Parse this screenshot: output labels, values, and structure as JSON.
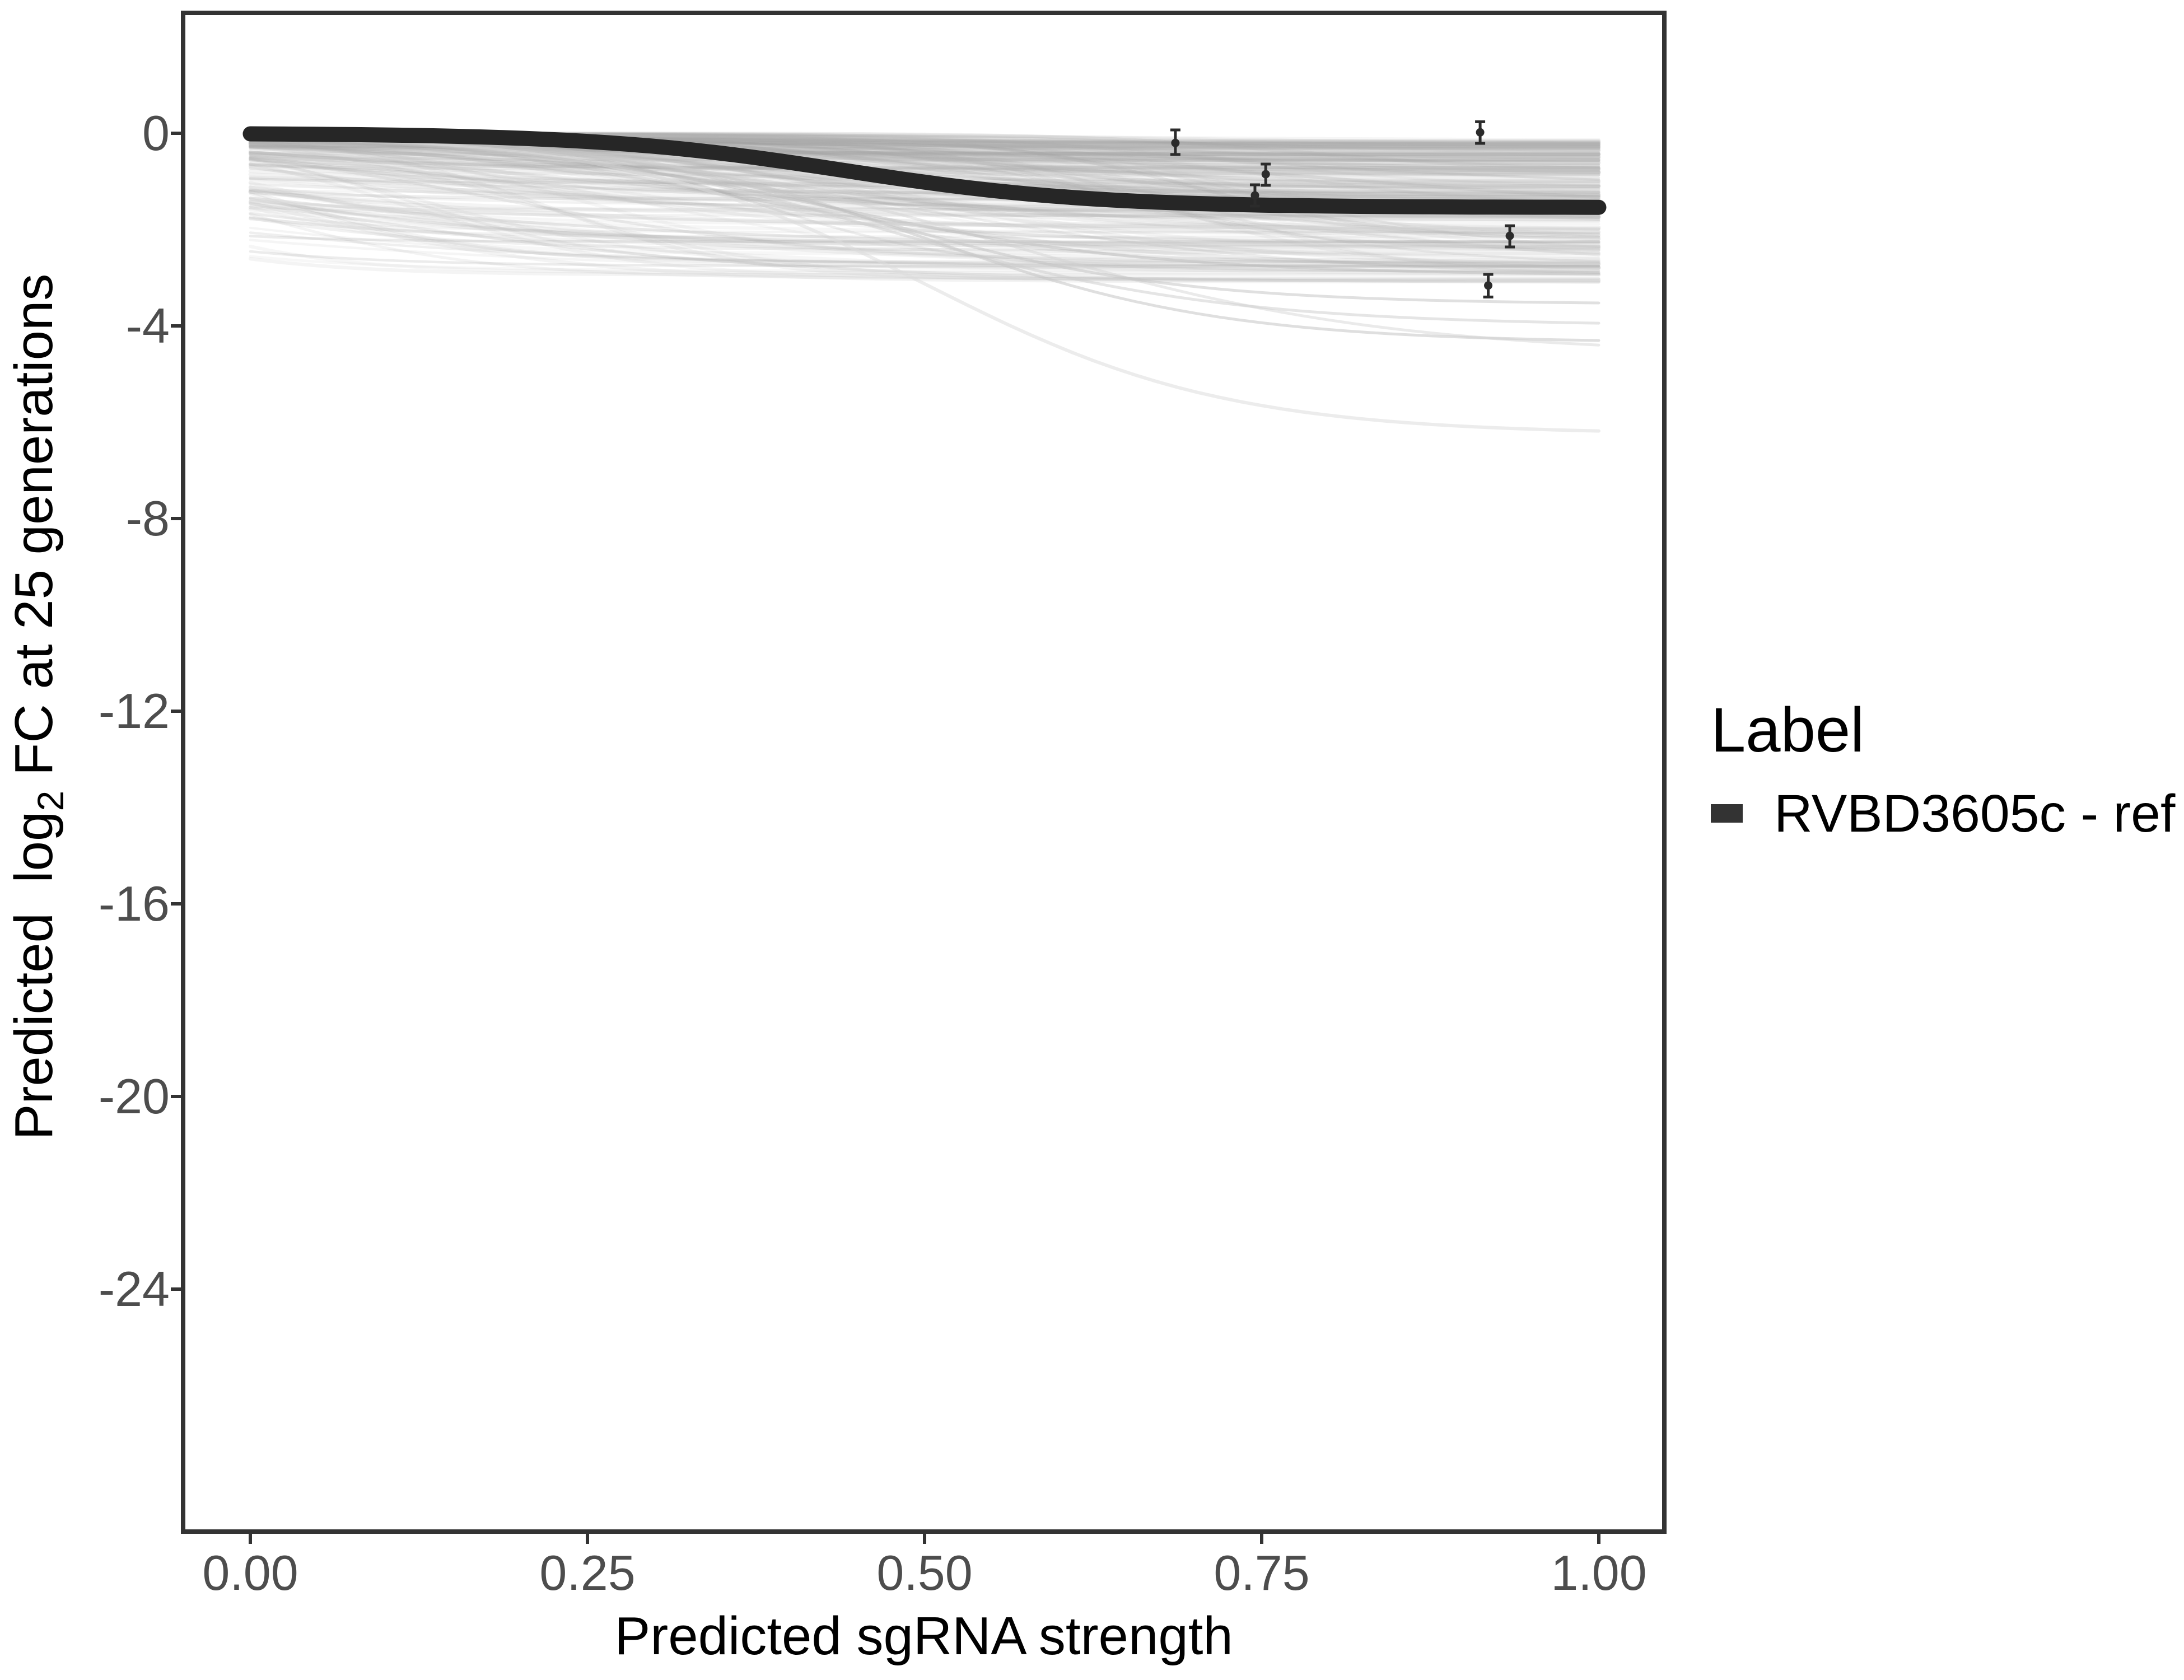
{
  "axes": {
    "x_title": "Predicted sgRNA strength",
    "y_title_pre": "Predicted  log",
    "y_title_sub": "2",
    "y_title_post": " FC at 25 generations"
  },
  "legend": {
    "title": "Label",
    "entries": [
      {
        "label": "RVBD3605c - ref",
        "key_color": "#333333"
      }
    ]
  },
  "colors": {
    "panel_border": "#333333",
    "tick_mark": "#333333",
    "tick_text": "#4d4d4d",
    "ref_curve": "#262626",
    "point": "#2b2b2b",
    "background": "#ffffff"
  },
  "chart_data": {
    "type": "line",
    "title": "",
    "xlabel": "Predicted sgRNA strength",
    "ylabel": "Predicted log2 FC at 25 generations",
    "x_ticks": [
      0.0,
      0.25,
      0.5,
      0.75,
      1.0
    ],
    "x_tick_labels": [
      "0.00",
      "0.25",
      "0.50",
      "0.75",
      "1.00"
    ],
    "y_ticks": [
      0,
      -4,
      -8,
      -12,
      -16,
      -20,
      -24
    ],
    "y_tick_labels": [
      "0",
      "-4",
      "-8",
      "-12",
      "-16",
      "-20",
      "-24"
    ],
    "xlim": [
      0,
      1
    ],
    "grid": "off",
    "legend_position": "right",
    "ref_curve": {
      "name": "RVBD3605c - ref",
      "shape": "sigmoid-decline",
      "start": 0,
      "plateau": -1.54,
      "inflection": 0.44,
      "steepness": 11,
      "color": "#262626",
      "width": 27
    },
    "points": [
      {
        "x": 0.686,
        "y": -0.2,
        "ymin": -0.44,
        "ymax": 0.07
      },
      {
        "x": 0.753,
        "y": -0.85,
        "ymin": -1.08,
        "ymax": -0.64
      },
      {
        "x": 0.745,
        "y": -1.29,
        "ymin": -1.51,
        "ymax": -1.07
      },
      {
        "x": 0.912,
        "y": 0.02,
        "ymin": -0.21,
        "ymax": 0.24
      },
      {
        "x": 0.934,
        "y": -2.13,
        "ymin": -2.36,
        "ymax": -1.92
      },
      {
        "x": 0.918,
        "y": -3.16,
        "ymin": -3.4,
        "ymax": -2.93
      }
    ],
    "ensemble": {
      "description": "posterior draw sigmoid curves, translucent gray",
      "count": 240,
      "seed": 11,
      "depth_range": [
        0.15,
        3.1
      ],
      "inflection_range": [
        -0.28,
        0.78
      ],
      "steepness_range": [
        4,
        14
      ],
      "start_range": [
        0,
        -0.12
      ],
      "gray_range": [
        150,
        195
      ],
      "alpha_range": [
        0.1,
        0.2
      ],
      "width_range": [
        4,
        7
      ]
    },
    "highlight_curves": [
      {
        "start": 0,
        "plateau": -4.35,
        "inflection": 0.5,
        "steepness": 9,
        "color": "#c4c4c4",
        "opacity": 0.55,
        "width": 5
      },
      {
        "start": 0,
        "plateau": -4.6,
        "inflection": 0.56,
        "steepness": 7,
        "color": "#d0d0d0",
        "opacity": 0.45,
        "width": 5
      },
      {
        "start": 0,
        "plateau": -4.0,
        "inflection": 0.47,
        "steepness": 8,
        "color": "#cbcbcb",
        "opacity": 0.5,
        "width": 5
      },
      {
        "start": 0,
        "plateau": -6.25,
        "inflection": 0.5,
        "steepness": 9,
        "color": "#dcdcdc",
        "opacity": 0.55,
        "width": 6
      },
      {
        "start": 0,
        "plateau": -3.55,
        "inflection": 0.46,
        "steepness": 9,
        "color": "#c2c2c2",
        "opacity": 0.5,
        "width": 5
      },
      {
        "start": 0,
        "plateau": -2.95,
        "inflection": 0.42,
        "steepness": 8,
        "color": "#bcbcbc",
        "opacity": 0.5,
        "width": 5
      },
      {
        "start": -0.05,
        "plateau": -2.3,
        "inflection": -0.05,
        "steepness": 5,
        "color": "#cfcfcf",
        "opacity": 0.5,
        "width": 5
      },
      {
        "start": -0.1,
        "plateau": -1.9,
        "inflection": -0.2,
        "steepness": 4,
        "color": "#d8d8d8",
        "opacity": 0.5,
        "width": 5
      }
    ]
  }
}
